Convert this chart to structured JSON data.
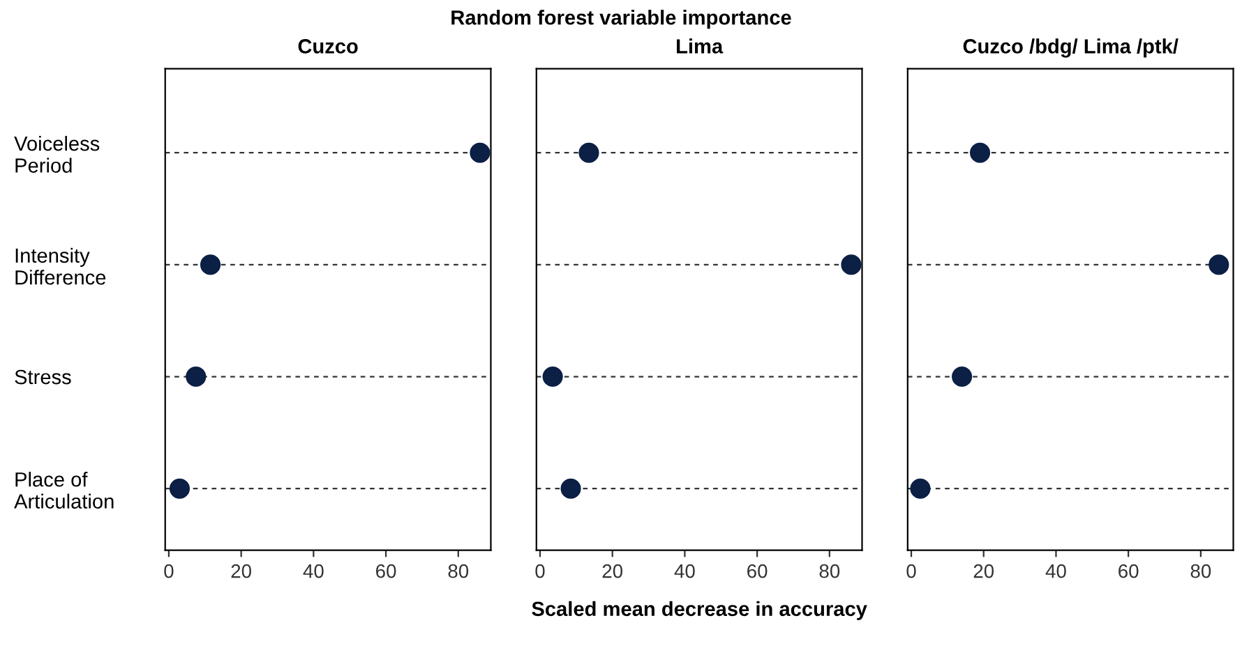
{
  "chart_data": [
    {
      "type": "scatter",
      "title": "Cuzco",
      "categories": [
        "Voiceless\nPeriod",
        "Intensity\nDifference",
        "Stress",
        "Place of\nArticulation"
      ],
      "values": [
        86,
        11.5,
        7.5,
        3
      ],
      "color": "#0c1f45",
      "xlim": [
        -1,
        89
      ],
      "xticks": [
        0,
        20,
        40,
        60,
        80
      ],
      "grid": "y",
      "marker": "circle",
      "orientation": "horizontal"
    },
    {
      "type": "scatter",
      "title": "Lima",
      "values": [
        13.5,
        86,
        3.5,
        8.5
      ],
      "color": "#0c1f45",
      "xlim": [
        -1,
        89
      ],
      "xticks": [
        0,
        20,
        40,
        60,
        80
      ],
      "grid": "y",
      "marker": "circle",
      "orientation": "horizontal",
      "tick_labels": "x",
      "xlabel": "Scaled mean decrease in accuracy",
      "annotations": [
        "Random forest variable importance"
      ]
    },
    {
      "type": "scatter",
      "title": "Cuzco /bdg/ Lima /ptk/",
      "values": [
        19,
        85,
        14,
        2.5
      ],
      "color": "#0c1f45",
      "xlim": [
        -1,
        89
      ],
      "xticks": [
        0,
        20,
        40,
        60,
        80
      ],
      "grid": "y",
      "marker": "circle",
      "orientation": "horizontal",
      "tick_labels": "x"
    }
  ]
}
